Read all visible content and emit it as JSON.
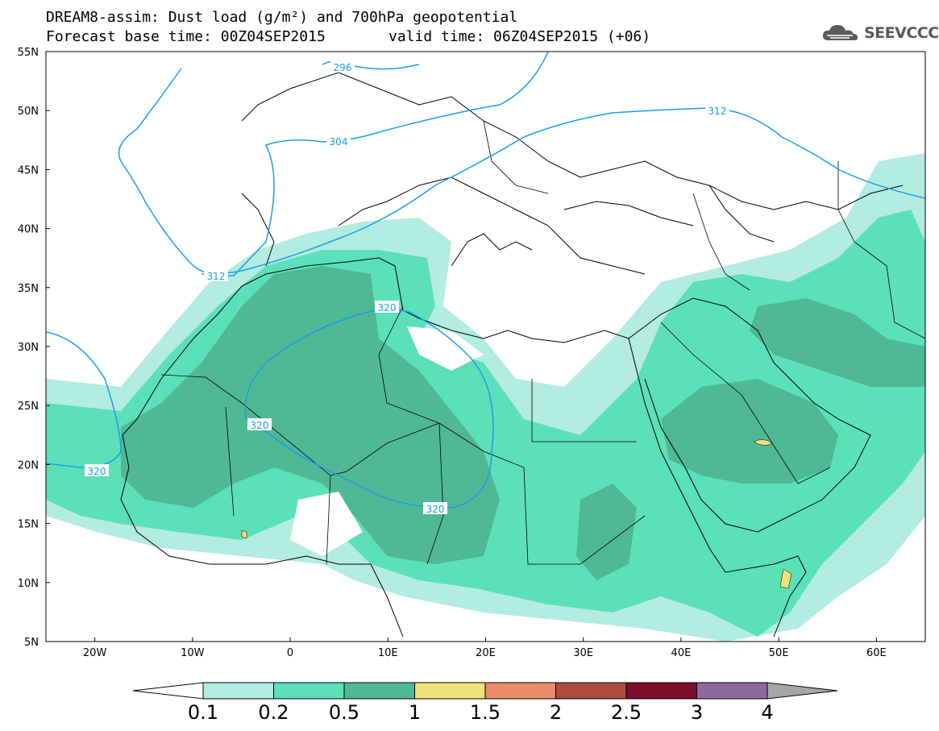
{
  "header": {
    "title": "DREAM8-assim: Dust load (g/m²) and 700hPa geopotential",
    "base_time_label": "Forecast base time: 00Z04SEP2015",
    "valid_time_label": "valid time: 06Z04SEP2015 (+06)"
  },
  "logo": {
    "text": "SEEVCCC",
    "icon": "cloud-icon"
  },
  "map": {
    "lat_labels": [
      "55N",
      "50N",
      "45N",
      "40N",
      "35N",
      "30N",
      "25N",
      "20N",
      "15N",
      "10N",
      "5N"
    ],
    "lon_labels": [
      "20W",
      "10W",
      "0",
      "10E",
      "20E",
      "30E",
      "40E",
      "50E",
      "60E"
    ],
    "contour_labels": [
      "296",
      "304",
      "312",
      "312",
      "320",
      "320",
      "320",
      "320"
    ],
    "extent": {
      "lon_min": -25,
      "lon_max": 65,
      "lat_min": 5,
      "lat_max": 55
    }
  },
  "colorbar": {
    "colors": [
      "#ffffff",
      "#b3ece0",
      "#5ce0b8",
      "#4fb994",
      "#f1e27a",
      "#ea8c6a",
      "#ad4c3f",
      "#7c0d2b",
      "#8c6a9e",
      "#a6a6a6"
    ],
    "labels": [
      "0.1",
      "0.2",
      "0.5",
      "1",
      "1.5",
      "2",
      "2.5",
      "3",
      "4"
    ]
  }
}
